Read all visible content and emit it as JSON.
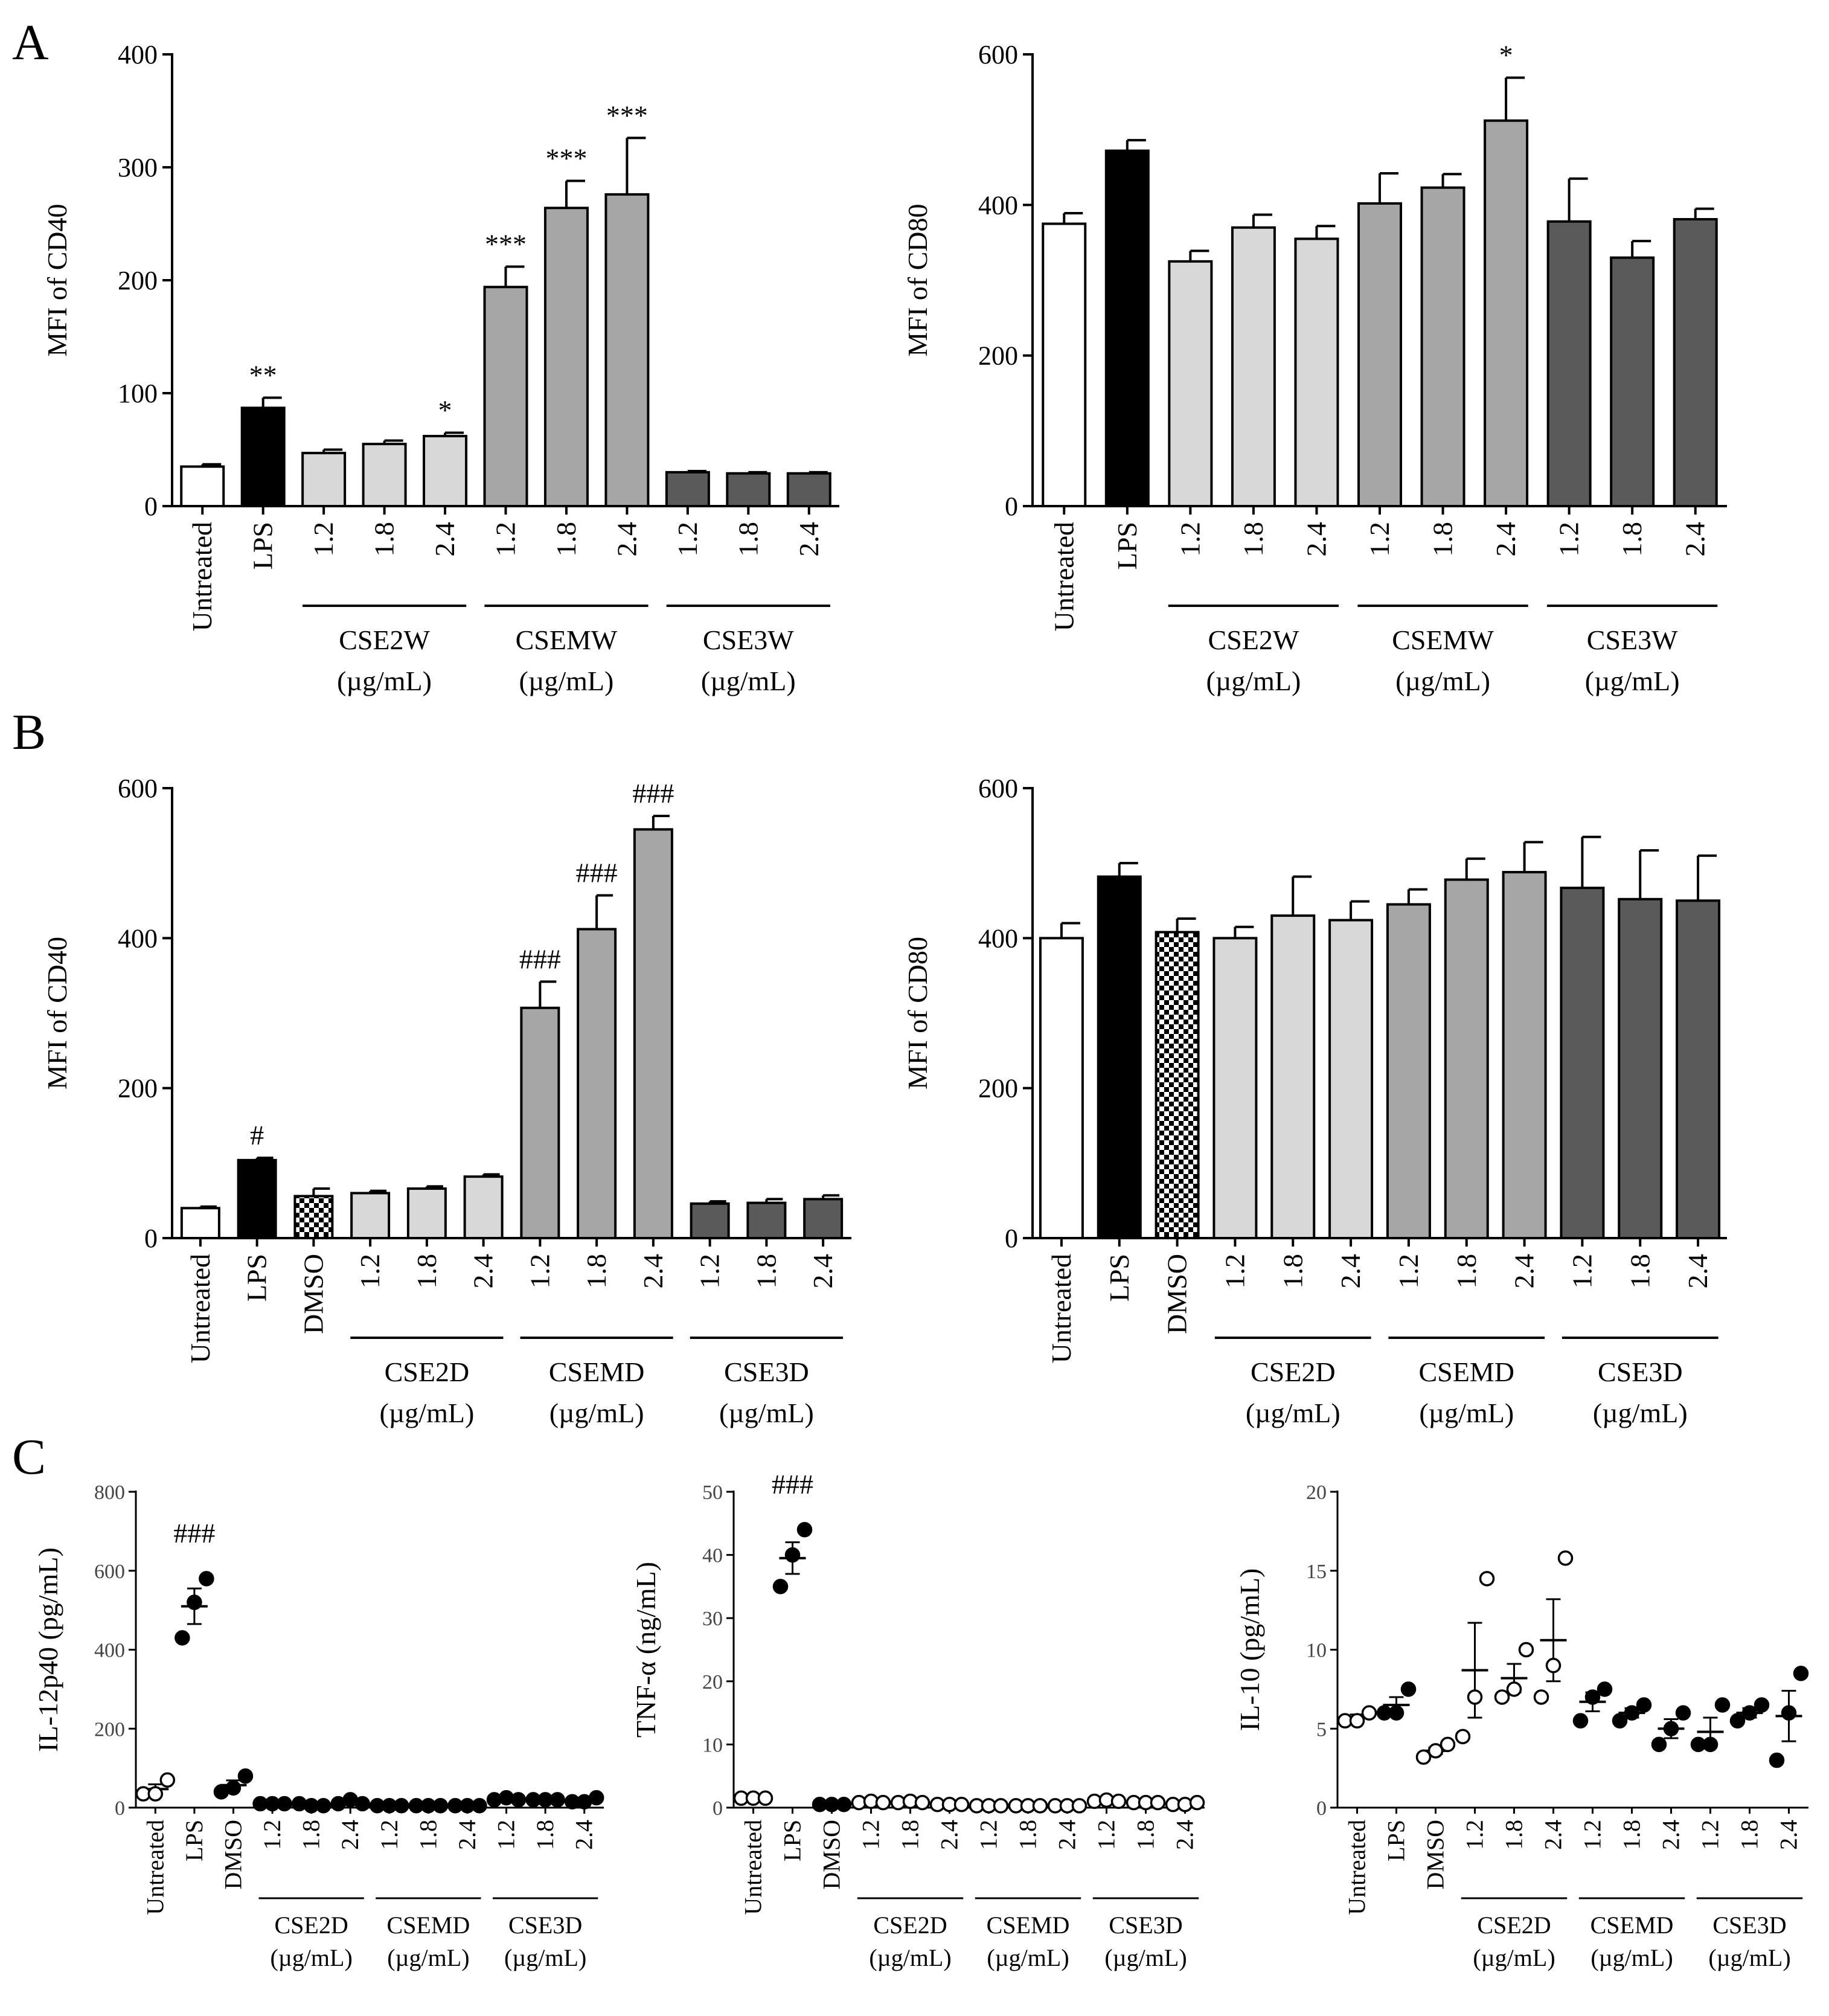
{
  "panel_letters": [
    "A",
    "B",
    "C"
  ],
  "chart_data": [
    {
      "id": "A1",
      "panel": "A",
      "type": "bar",
      "ylabel": "MFI of CD40",
      "ylim": [
        0,
        400
      ],
      "yticks": [
        0,
        100,
        200,
        300,
        400
      ],
      "categories": [
        "Untreated",
        "LPS",
        "1.2",
        "1.8",
        "2.4",
        "1.2",
        "1.8",
        "2.4",
        "1.2",
        "1.8",
        "2.4"
      ],
      "values": [
        35,
        87,
        47,
        55,
        62,
        194,
        264,
        276,
        30,
        29,
        29
      ],
      "errors": [
        2,
        9,
        3,
        3,
        3,
        18,
        24,
        50,
        1,
        1,
        1
      ],
      "fills": [
        "white",
        "black",
        "light",
        "light",
        "light",
        "mid",
        "mid",
        "mid",
        "dark",
        "dark",
        "dark"
      ],
      "annotations": [
        "",
        "**",
        "",
        "",
        "*",
        "***",
        "***",
        "***",
        "",
        "",
        ""
      ],
      "groups": [
        {
          "name": "CSE2W",
          "unit": "(µg/mL)",
          "start": 2,
          "end": 4
        },
        {
          "name": "CSEMW",
          "unit": "(µg/mL)",
          "start": 5,
          "end": 7
        },
        {
          "name": "CSE3W",
          "unit": "(µg/mL)",
          "start": 8,
          "end": 10
        }
      ]
    },
    {
      "id": "A2",
      "panel": "A",
      "type": "bar",
      "ylabel": "MFI of CD80",
      "ylim": [
        0,
        600
      ],
      "yticks": [
        0,
        200,
        400,
        600
      ],
      "categories": [
        "Untreated",
        "LPS",
        "1.2",
        "1.8",
        "2.4",
        "1.2",
        "1.8",
        "2.4",
        "1.2",
        "1.8",
        "2.4"
      ],
      "values": [
        375,
        472,
        325,
        370,
        355,
        402,
        423,
        512,
        378,
        330,
        381
      ],
      "errors": [
        14,
        14,
        14,
        17,
        17,
        40,
        18,
        57,
        57,
        22,
        14
      ],
      "fills": [
        "white",
        "black",
        "light",
        "light",
        "light",
        "mid",
        "mid",
        "mid",
        "dark",
        "dark",
        "dark"
      ],
      "annotations": [
        "",
        "",
        "",
        "",
        "",
        "",
        "",
        "*",
        "",
        "",
        ""
      ],
      "groups": [
        {
          "name": "CSE2W",
          "unit": "(µg/mL)",
          "start": 2,
          "end": 4
        },
        {
          "name": "CSEMW",
          "unit": "(µg/mL)",
          "start": 5,
          "end": 7
        },
        {
          "name": "CSE3W",
          "unit": "(µg/mL)",
          "start": 8,
          "end": 10
        }
      ]
    },
    {
      "id": "B1",
      "panel": "B",
      "type": "bar",
      "ylabel": "MFI of CD40",
      "ylim": [
        0,
        600
      ],
      "yticks": [
        0,
        200,
        400,
        600
      ],
      "categories": [
        "Untreated",
        "LPS",
        "DMSO",
        "1.2",
        "1.8",
        "2.4",
        "1.2",
        "1.8",
        "2.4",
        "1.2",
        "1.8",
        "2.4"
      ],
      "values": [
        40,
        104,
        56,
        60,
        66,
        82,
        307,
        412,
        545,
        46,
        47,
        52
      ],
      "errors": [
        2,
        3,
        10,
        3,
        3,
        3,
        35,
        45,
        18,
        3,
        5,
        5
      ],
      "fills": [
        "white",
        "black",
        "checker",
        "light",
        "light",
        "light",
        "mid",
        "mid",
        "mid",
        "dark",
        "dark",
        "dark"
      ],
      "annotations": [
        "",
        "#",
        "",
        "",
        "",
        "",
        "###",
        "###",
        "###",
        "",
        "",
        ""
      ],
      "groups": [
        {
          "name": "CSE2D",
          "unit": "(µg/mL)",
          "start": 3,
          "end": 5
        },
        {
          "name": "CSEMD",
          "unit": "(µg/mL)",
          "start": 6,
          "end": 8
        },
        {
          "name": "CSE3D",
          "unit": "(µg/mL)",
          "start": 9,
          "end": 11
        }
      ]
    },
    {
      "id": "B2",
      "panel": "B",
      "type": "bar",
      "ylabel": "MFI of CD80",
      "ylim": [
        0,
        600
      ],
      "yticks": [
        0,
        200,
        400,
        600
      ],
      "categories": [
        "Untreated",
        "LPS",
        "DMSO",
        "1.2",
        "1.8",
        "2.4",
        "1.2",
        "1.8",
        "2.4",
        "1.2",
        "1.8",
        "2.4"
      ],
      "values": [
        400,
        482,
        408,
        400,
        430,
        424,
        445,
        478,
        488,
        467,
        452,
        450
      ],
      "errors": [
        20,
        18,
        18,
        15,
        52,
        25,
        20,
        28,
        40,
        68,
        65,
        60
      ],
      "fills": [
        "white",
        "black",
        "checker",
        "light",
        "light",
        "light",
        "mid",
        "mid",
        "mid",
        "dark",
        "dark",
        "dark"
      ],
      "annotations": [
        "",
        "",
        "",
        "",
        "",
        "",
        "",
        "",
        "",
        "",
        "",
        ""
      ],
      "groups": [
        {
          "name": "CSE2D",
          "unit": "(µg/mL)",
          "start": 3,
          "end": 5
        },
        {
          "name": "CSEMD",
          "unit": "(µg/mL)",
          "start": 6,
          "end": 8
        },
        {
          "name": "CSE3D",
          "unit": "(µg/mL)",
          "start": 9,
          "end": 11
        }
      ]
    },
    {
      "id": "C1",
      "panel": "C",
      "type": "scatter",
      "ylabel": "IL-12p40 (pg/mL)",
      "ylim": [
        0,
        800
      ],
      "yticks": [
        0,
        200,
        400,
        600,
        800
      ],
      "categories": [
        "Untreated",
        "LPS",
        "DMSO",
        "1.2",
        "1.8",
        "2.4",
        "1.2",
        "1.8",
        "2.4",
        "1.2",
        "1.8",
        "2.4"
      ],
      "points": [
        [
          35,
          35,
          70
        ],
        [
          430,
          520,
          580
        ],
        [
          40,
          50,
          80
        ],
        [
          10,
          10,
          10
        ],
        [
          10,
          5,
          5
        ],
        [
          10,
          20,
          10
        ],
        [
          5,
          5,
          5
        ],
        [
          5,
          5,
          5
        ],
        [
          5,
          5,
          5
        ],
        [
          20,
          25,
          20
        ],
        [
          20,
          20,
          20
        ],
        [
          15,
          15,
          25
        ]
      ],
      "means": [
        47,
        510,
        57,
        10,
        7,
        13,
        5,
        5,
        5,
        22,
        20,
        18
      ],
      "sems": [
        12,
        45,
        12,
        2,
        2,
        3,
        1,
        1,
        1,
        3,
        2,
        3
      ],
      "point_fills": [
        "open",
        "filled",
        "filled",
        "filled",
        "filled",
        "filled",
        "filled",
        "filled",
        "filled",
        "filled",
        "filled",
        "filled"
      ],
      "annotations": [
        "",
        "###",
        "",
        "",
        "",
        "",
        "",
        "",
        "",
        "",
        "",
        ""
      ],
      "groups": [
        {
          "name": "CSE2D",
          "unit": "(µg/mL)",
          "start": 3,
          "end": 5
        },
        {
          "name": "CSEMD",
          "unit": "(µg/mL)",
          "start": 6,
          "end": 8
        },
        {
          "name": "CSE3D",
          "unit": "(µg/mL)",
          "start": 9,
          "end": 11
        }
      ]
    },
    {
      "id": "C2",
      "panel": "C",
      "type": "scatter",
      "ylabel": "TNF-α (ng/mL)",
      "ylim": [
        0,
        50
      ],
      "yticks": [
        0,
        10,
        20,
        30,
        40,
        50
      ],
      "categories": [
        "Untreated",
        "LPS",
        "DMSO",
        "1.2",
        "1.8",
        "2.4",
        "1.2",
        "1.8",
        "2.4",
        "1.2",
        "1.8",
        "2.4"
      ],
      "points": [
        [
          1.5,
          1.5,
          1.5
        ],
        [
          35,
          40,
          44
        ],
        [
          0.5,
          0.5,
          0.5
        ],
        [
          0.8,
          1,
          0.8
        ],
        [
          0.8,
          1,
          0.8
        ],
        [
          0.5,
          0.5,
          0.5
        ],
        [
          0.3,
          0.3,
          0.3
        ],
        [
          0.3,
          0.3,
          0.3
        ],
        [
          0.3,
          0.3,
          0.3
        ],
        [
          1,
          1.2,
          1
        ],
        [
          0.8,
          0.8,
          0.8
        ],
        [
          0.5,
          0.5,
          0.8
        ]
      ],
      "means": [
        1.5,
        39.5,
        0.5,
        0.9,
        0.9,
        0.5,
        0.3,
        0.3,
        0.3,
        1.1,
        0.8,
        0.6
      ],
      "sems": [
        0.2,
        2.5,
        0.1,
        0.1,
        0.1,
        0.1,
        0.1,
        0.1,
        0.1,
        0.1,
        0.1,
        0.1
      ],
      "point_fills": [
        "open",
        "filled",
        "filled",
        "open",
        "open",
        "open",
        "open",
        "open",
        "open",
        "open",
        "open",
        "open"
      ],
      "annotations": [
        "",
        "###",
        "",
        "",
        "",
        "",
        "",
        "",
        "",
        "",
        "",
        ""
      ],
      "groups": [
        {
          "name": "CSE2D",
          "unit": "(µg/mL)",
          "start": 3,
          "end": 5
        },
        {
          "name": "CSEMD",
          "unit": "(µg/mL)",
          "start": 6,
          "end": 8
        },
        {
          "name": "CSE3D",
          "unit": "(µg/mL)",
          "start": 9,
          "end": 11
        }
      ]
    },
    {
      "id": "C3",
      "panel": "C",
      "type": "scatter",
      "ylabel": "IL-10 (pg/mL)",
      "ylim": [
        0,
        20
      ],
      "yticks": [
        0,
        5,
        10,
        15,
        20
      ],
      "categories": [
        "Untreated",
        "LPS",
        "DMSO",
        "1.2",
        "1.8",
        "2.4",
        "1.2",
        "1.8",
        "2.4",
        "1.2",
        "1.8",
        "2.4"
      ],
      "points": [
        [
          5.5,
          5.5,
          6
        ],
        [
          6,
          6,
          7.5
        ],
        [
          3.2,
          3.6,
          4
        ],
        [
          4.5,
          7,
          14.5
        ],
        [
          7,
          7.5,
          10
        ],
        [
          7,
          9,
          15.8
        ],
        [
          5.5,
          7,
          7.5
        ],
        [
          5.5,
          6,
          6.5
        ],
        [
          4,
          5,
          6
        ],
        [
          4,
          4,
          6.5
        ],
        [
          5.5,
          6,
          6.5
        ],
        [
          3,
          6,
          8.5
        ]
      ],
      "means": [
        5.7,
        6.5,
        3.6,
        8.7,
        8.2,
        10.6,
        6.7,
        6.0,
        5.0,
        4.8,
        6.0,
        5.8
      ],
      "sems": [
        0.2,
        0.5,
        0.2,
        3.0,
        0.9,
        2.6,
        0.6,
        0.3,
        0.6,
        0.9,
        0.3,
        1.6
      ],
      "point_fills": [
        "open",
        "filled",
        "open",
        "open",
        "open",
        "open",
        "filled",
        "filled",
        "filled",
        "filled",
        "filled",
        "filled"
      ],
      "annotations": [
        "",
        "",
        "",
        "",
        "",
        "",
        "",
        "",
        "",
        "",
        "",
        ""
      ],
      "groups": [
        {
          "name": "CSE2D",
          "unit": "(µg/mL)",
          "start": 3,
          "end": 5
        },
        {
          "name": "CSEMD",
          "unit": "(µg/mL)",
          "start": 6,
          "end": 8
        },
        {
          "name": "CSE3D",
          "unit": "(µg/mL)",
          "start": 9,
          "end": 11
        }
      ]
    }
  ],
  "colors": {
    "white": "#ffffff",
    "black": "#000000",
    "light": "#d8d8d8",
    "mid": "#a6a6a6",
    "dark": "#5a5a5a",
    "axis": "#000000"
  }
}
